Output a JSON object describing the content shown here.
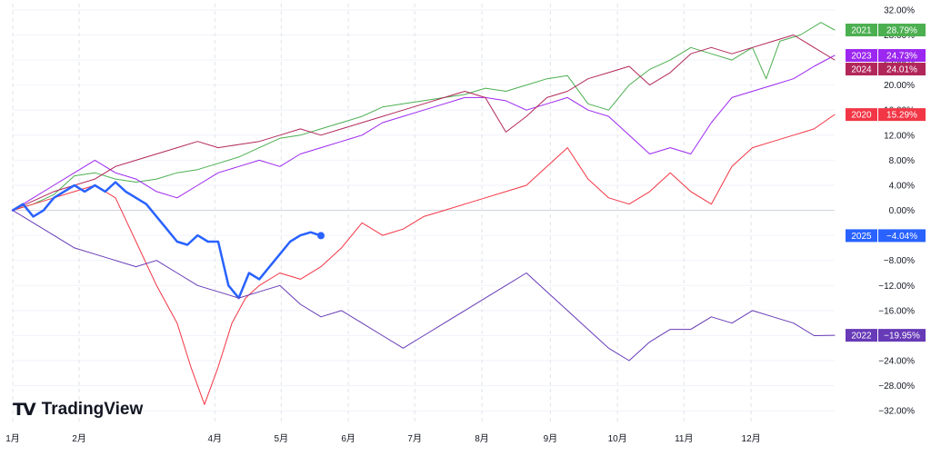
{
  "chart_data": {
    "type": "line",
    "ylim": [
      -34,
      33
    ],
    "x_range": [
      0,
      12
    ],
    "y_ticks": [
      32,
      28,
      24,
      20,
      16,
      12,
      8,
      4,
      0,
      -4,
      -8,
      -12,
      -16,
      -20,
      -24,
      -28,
      -32
    ],
    "y_tick_labels": [
      "32.00%",
      "28.00%",
      "24.00%",
      "20.00%",
      "16.00%",
      "12.00%",
      "8.00%",
      "4.00%",
      "0.00%",
      "−4.00%",
      "−8.00%",
      "−12.00%",
      "−16.00%",
      "−20.00%",
      "−24.00%",
      "−28.00%",
      "−32.00%"
    ],
    "x_ticks": [
      {
        "x": 0.0,
        "label": "1月"
      },
      {
        "x": 0.97,
        "label": "2月"
      },
      {
        "x": 2.95,
        "label": "4月"
      },
      {
        "x": 3.92,
        "label": "5月"
      },
      {
        "x": 4.9,
        "label": "6月"
      },
      {
        "x": 5.87,
        "label": "7月"
      },
      {
        "x": 6.85,
        "label": "8月"
      },
      {
        "x": 7.85,
        "label": "9月"
      },
      {
        "x": 8.83,
        "label": "10月"
      },
      {
        "x": 9.8,
        "label": "11月"
      },
      {
        "x": 10.78,
        "label": "12月"
      }
    ],
    "grid": true,
    "legend": "right",
    "series": [
      {
        "name": "2021",
        "value_label": "28.79%",
        "color": "#4caf50",
        "width": 1,
        "points": [
          [
            0,
            0
          ],
          [
            0.3,
            1
          ],
          [
            0.6,
            2.5
          ],
          [
            0.9,
            5.5
          ],
          [
            1.2,
            6
          ],
          [
            1.5,
            5
          ],
          [
            1.8,
            4.5
          ],
          [
            2.1,
            5
          ],
          [
            2.4,
            6
          ],
          [
            2.7,
            6.5
          ],
          [
            3.0,
            7.5
          ],
          [
            3.3,
            8.5
          ],
          [
            3.6,
            10
          ],
          [
            3.9,
            11.5
          ],
          [
            4.2,
            12
          ],
          [
            4.5,
            13
          ],
          [
            4.8,
            14
          ],
          [
            5.1,
            15
          ],
          [
            5.4,
            16.5
          ],
          [
            5.7,
            17
          ],
          [
            6.0,
            17.5
          ],
          [
            6.3,
            18
          ],
          [
            6.6,
            18.5
          ],
          [
            6.9,
            19.5
          ],
          [
            7.2,
            19
          ],
          [
            7.5,
            20
          ],
          [
            7.8,
            21
          ],
          [
            8.1,
            21.5
          ],
          [
            8.4,
            17
          ],
          [
            8.7,
            16
          ],
          [
            9.0,
            20
          ],
          [
            9.3,
            22.5
          ],
          [
            9.6,
            24
          ],
          [
            9.9,
            26
          ],
          [
            10.2,
            25
          ],
          [
            10.5,
            24
          ],
          [
            10.8,
            26
          ],
          [
            11.0,
            21
          ],
          [
            11.2,
            27
          ],
          [
            11.5,
            28
          ],
          [
            11.8,
            30
          ],
          [
            12.0,
            28.79
          ]
        ]
      },
      {
        "name": "2023",
        "value_label": "24.73%",
        "color": "#9c27f0",
        "width": 1,
        "points": [
          [
            0,
            0
          ],
          [
            0.3,
            2
          ],
          [
            0.6,
            4
          ],
          [
            0.9,
            6
          ],
          [
            1.2,
            8
          ],
          [
            1.5,
            6
          ],
          [
            1.8,
            5
          ],
          [
            2.1,
            3
          ],
          [
            2.4,
            2
          ],
          [
            2.7,
            4
          ],
          [
            3.0,
            6
          ],
          [
            3.3,
            7
          ],
          [
            3.6,
            8
          ],
          [
            3.9,
            7
          ],
          [
            4.2,
            9
          ],
          [
            4.5,
            10
          ],
          [
            4.8,
            11
          ],
          [
            5.1,
            12
          ],
          [
            5.4,
            14
          ],
          [
            5.7,
            15
          ],
          [
            6.0,
            16
          ],
          [
            6.3,
            17
          ],
          [
            6.6,
            18
          ],
          [
            6.9,
            18
          ],
          [
            7.2,
            17.5
          ],
          [
            7.5,
            16
          ],
          [
            7.8,
            17
          ],
          [
            8.1,
            18
          ],
          [
            8.4,
            16
          ],
          [
            8.7,
            15
          ],
          [
            9.0,
            12
          ],
          [
            9.3,
            9
          ],
          [
            9.6,
            10
          ],
          [
            9.9,
            9
          ],
          [
            10.2,
            14
          ],
          [
            10.5,
            18
          ],
          [
            10.8,
            19
          ],
          [
            11.1,
            20
          ],
          [
            11.4,
            21
          ],
          [
            11.7,
            23
          ],
          [
            12.0,
            24.73
          ]
        ]
      },
      {
        "name": "2024",
        "value_label": "24.01%",
        "color": "#b2275a",
        "width": 1,
        "points": [
          [
            0,
            0
          ],
          [
            0.3,
            1.5
          ],
          [
            0.6,
            3
          ],
          [
            0.9,
            4
          ],
          [
            1.2,
            5
          ],
          [
            1.5,
            7
          ],
          [
            1.8,
            8
          ],
          [
            2.1,
            9
          ],
          [
            2.4,
            10
          ],
          [
            2.7,
            11
          ],
          [
            3.0,
            10
          ],
          [
            3.3,
            10.5
          ],
          [
            3.6,
            11
          ],
          [
            3.9,
            12
          ],
          [
            4.2,
            13
          ],
          [
            4.5,
            12
          ],
          [
            4.8,
            13
          ],
          [
            5.1,
            14
          ],
          [
            5.4,
            15
          ],
          [
            5.7,
            16
          ],
          [
            6.0,
            17
          ],
          [
            6.3,
            18
          ],
          [
            6.6,
            19
          ],
          [
            6.9,
            18
          ],
          [
            7.2,
            12.5
          ],
          [
            7.5,
            15
          ],
          [
            7.8,
            18
          ],
          [
            8.1,
            19
          ],
          [
            8.4,
            21
          ],
          [
            8.7,
            22
          ],
          [
            9.0,
            23
          ],
          [
            9.3,
            20
          ],
          [
            9.6,
            22
          ],
          [
            9.9,
            25
          ],
          [
            10.2,
            26
          ],
          [
            10.5,
            25
          ],
          [
            10.8,
            26
          ],
          [
            11.1,
            27
          ],
          [
            11.4,
            28
          ],
          [
            11.7,
            26
          ],
          [
            12.0,
            24.01
          ]
        ]
      },
      {
        "name": "2020",
        "value_label": "15.29%",
        "color": "#f23645",
        "width": 1,
        "points": [
          [
            0,
            0
          ],
          [
            0.3,
            1
          ],
          [
            0.6,
            2
          ],
          [
            0.9,
            3
          ],
          [
            1.2,
            4
          ],
          [
            1.5,
            2
          ],
          [
            1.8,
            -5
          ],
          [
            2.1,
            -12
          ],
          [
            2.4,
            -18
          ],
          [
            2.6,
            -25
          ],
          [
            2.8,
            -31
          ],
          [
            3.0,
            -25
          ],
          [
            3.2,
            -18
          ],
          [
            3.4,
            -14
          ],
          [
            3.6,
            -12
          ],
          [
            3.9,
            -10
          ],
          [
            4.2,
            -11
          ],
          [
            4.5,
            -9
          ],
          [
            4.8,
            -6
          ],
          [
            5.1,
            -2
          ],
          [
            5.4,
            -4
          ],
          [
            5.7,
            -3
          ],
          [
            6.0,
            -1
          ],
          [
            6.3,
            0
          ],
          [
            6.6,
            1
          ],
          [
            6.9,
            2
          ],
          [
            7.2,
            3
          ],
          [
            7.5,
            4
          ],
          [
            7.8,
            7
          ],
          [
            8.1,
            10
          ],
          [
            8.4,
            5
          ],
          [
            8.7,
            2
          ],
          [
            9.0,
            1
          ],
          [
            9.3,
            3
          ],
          [
            9.6,
            6
          ],
          [
            9.9,
            3
          ],
          [
            10.2,
            1
          ],
          [
            10.5,
            7
          ],
          [
            10.8,
            10
          ],
          [
            11.1,
            11
          ],
          [
            11.4,
            12
          ],
          [
            11.7,
            13
          ],
          [
            12.0,
            15.29
          ]
        ]
      },
      {
        "name": "2025",
        "value_label": "−4.04%",
        "color": "#2962ff",
        "width": 2.5,
        "points": [
          [
            0,
            0
          ],
          [
            0.15,
            1
          ],
          [
            0.3,
            -1
          ],
          [
            0.45,
            0
          ],
          [
            0.6,
            2
          ],
          [
            0.75,
            3
          ],
          [
            0.9,
            4
          ],
          [
            1.05,
            3
          ],
          [
            1.2,
            4
          ],
          [
            1.35,
            3
          ],
          [
            1.5,
            4.5
          ],
          [
            1.65,
            3
          ],
          [
            1.8,
            2
          ],
          [
            1.95,
            1
          ],
          [
            2.1,
            -1
          ],
          [
            2.25,
            -3
          ],
          [
            2.4,
            -5
          ],
          [
            2.55,
            -5.5
          ],
          [
            2.7,
            -4
          ],
          [
            2.85,
            -5
          ],
          [
            3.0,
            -5
          ],
          [
            3.15,
            -12
          ],
          [
            3.3,
            -14
          ],
          [
            3.45,
            -10
          ],
          [
            3.6,
            -11
          ],
          [
            3.75,
            -9
          ],
          [
            3.9,
            -7
          ],
          [
            4.05,
            -5
          ],
          [
            4.2,
            -4
          ],
          [
            4.35,
            -3.5
          ],
          [
            4.5,
            -4.04
          ]
        ]
      },
      {
        "name": "2022",
        "value_label": "−19.95%",
        "color": "#673ab7",
        "width": 1,
        "points": [
          [
            0,
            0
          ],
          [
            0.3,
            -2
          ],
          [
            0.6,
            -4
          ],
          [
            0.9,
            -6
          ],
          [
            1.2,
            -7
          ],
          [
            1.5,
            -8
          ],
          [
            1.8,
            -9
          ],
          [
            2.1,
            -8
          ],
          [
            2.4,
            -10
          ],
          [
            2.7,
            -12
          ],
          [
            3.0,
            -13
          ],
          [
            3.3,
            -14
          ],
          [
            3.6,
            -13
          ],
          [
            3.9,
            -12
          ],
          [
            4.2,
            -15
          ],
          [
            4.5,
            -17
          ],
          [
            4.8,
            -16
          ],
          [
            5.1,
            -18
          ],
          [
            5.4,
            -20
          ],
          [
            5.7,
            -22
          ],
          [
            6.0,
            -20
          ],
          [
            6.3,
            -18
          ],
          [
            6.6,
            -16
          ],
          [
            6.9,
            -14
          ],
          [
            7.2,
            -12
          ],
          [
            7.5,
            -10
          ],
          [
            7.8,
            -13
          ],
          [
            8.1,
            -16
          ],
          [
            8.4,
            -19
          ],
          [
            8.7,
            -22
          ],
          [
            9.0,
            -24
          ],
          [
            9.3,
            -21
          ],
          [
            9.6,
            -19
          ],
          [
            9.9,
            -19
          ],
          [
            10.2,
            -17
          ],
          [
            10.5,
            -18
          ],
          [
            10.8,
            -16
          ],
          [
            11.1,
            -17
          ],
          [
            11.4,
            -18
          ],
          [
            11.7,
            -20
          ],
          [
            12.0,
            -19.95
          ]
        ]
      }
    ]
  },
  "branding": {
    "logo_mark": "TV",
    "logo_text": "TradingView"
  },
  "colors": {
    "grid": "#f0f3fa",
    "zero_line": "#d1d4dc",
    "text": "#131722",
    "background": "#ffffff"
  }
}
